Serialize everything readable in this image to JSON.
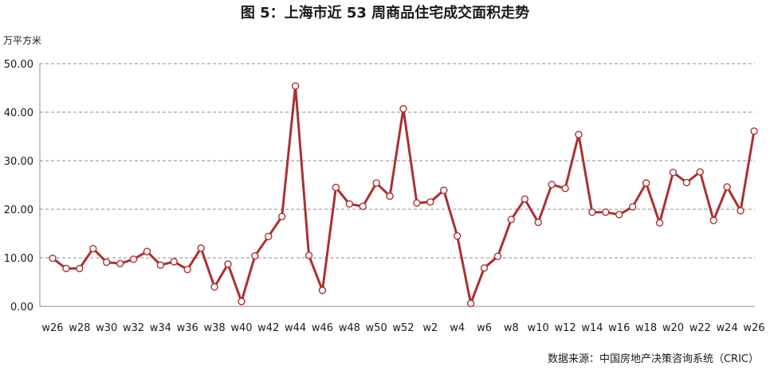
{
  "chart_data": {
    "type": "line",
    "title": "图 5：上海市近 53 周商品住宅成交面积走势",
    "ylabel": "万平方米",
    "xlabel": "",
    "source": "数据来源：中国房地产决策咨询系统（CRIC）",
    "ylim": [
      0,
      50
    ],
    "yticks": [
      "0.00",
      "10.00",
      "20.00",
      "30.00",
      "40.00",
      "50.00"
    ],
    "grid": true,
    "x": [
      "w26",
      "w27",
      "w28",
      "w29",
      "w30",
      "w31",
      "w32",
      "w33",
      "w34",
      "w35",
      "w36",
      "w37",
      "w38",
      "w39",
      "w40",
      "w41",
      "w42",
      "w43",
      "w44",
      "w45",
      "w46",
      "w47",
      "w48",
      "w49",
      "w50",
      "w51",
      "w52",
      "w1",
      "w2",
      "w3",
      "w4",
      "w5",
      "w6",
      "w7",
      "w8",
      "w9",
      "w10",
      "w11",
      "w12",
      "w13",
      "w14",
      "w15",
      "w16",
      "w17",
      "w18",
      "w19",
      "w20",
      "w21",
      "w22",
      "w23",
      "w24",
      "w25",
      "w26"
    ],
    "x_tick_labels": [
      "w26",
      "w28",
      "w30",
      "w32",
      "w34",
      "w36",
      "w38",
      "w40",
      "w42",
      "w44",
      "w46",
      "w48",
      "w50",
      "w52",
      "w2",
      "w4",
      "w6",
      "w8",
      "w10",
      "w12",
      "w14",
      "w16",
      "w18",
      "w20",
      "w22",
      "w24",
      "w26"
    ],
    "series": [
      {
        "values": [
          9.9,
          7.8,
          7.8,
          11.9,
          9.1,
          8.8,
          9.7,
          11.3,
          8.5,
          9.2,
          7.6,
          12.0,
          4.0,
          8.7,
          1.0,
          10.4,
          14.4,
          18.5,
          45.4,
          10.5,
          3.3,
          24.5,
          21.1,
          20.6,
          25.4,
          22.7,
          40.7,
          21.3,
          21.5,
          23.9,
          14.5,
          0.6,
          7.9,
          10.3,
          17.9,
          22.1,
          17.3,
          25.1,
          24.3,
          35.4,
          19.4,
          19.4,
          18.9,
          20.5,
          25.4,
          17.2,
          27.6,
          25.5,
          27.7,
          17.7,
          24.6,
          19.7,
          36.1
        ]
      }
    ],
    "colors": {
      "line": "#a83232",
      "marker_fill": "#ffffff",
      "grid": "#8c8c8c",
      "axis": "#8c8c8c"
    }
  }
}
